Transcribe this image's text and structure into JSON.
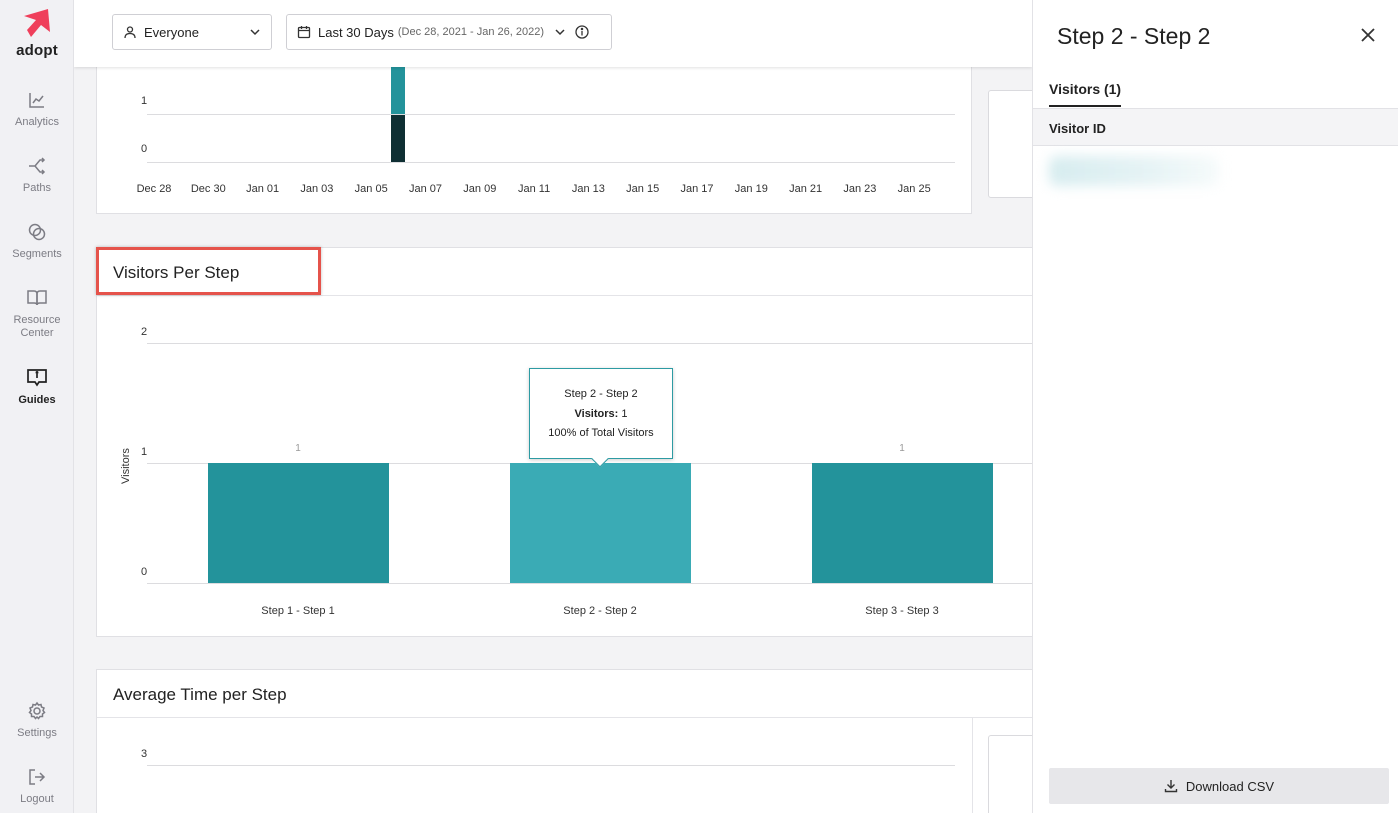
{
  "sidebar": {
    "logo_text": "adopt",
    "items": [
      {
        "label": "Analytics",
        "icon": "chart-line-icon"
      },
      {
        "label": "Paths",
        "icon": "paths-icon"
      },
      {
        "label": "Segments",
        "icon": "segments-icon"
      },
      {
        "label": "Resource Center",
        "icon": "book-icon"
      },
      {
        "label": "Guides",
        "icon": "guides-icon",
        "active": true
      },
      {
        "label": "Settings",
        "icon": "gear-icon"
      },
      {
        "label": "Logout",
        "icon": "logout-icon"
      }
    ]
  },
  "topbar": {
    "audience": "Everyone",
    "date_range": "Last 30 Days",
    "date_range_detail": "(Dec 28, 2021 - Jan 26, 2022)"
  },
  "top_chart": {
    "y_ticks": [
      "1",
      "0"
    ],
    "x_ticks": [
      "Dec 28",
      "Dec 30",
      "Jan 01",
      "Jan 03",
      "Jan 05",
      "Jan 07",
      "Jan 09",
      "Jan 11",
      "Jan 13",
      "Jan 15",
      "Jan 17",
      "Jan 19",
      "Jan 21",
      "Jan 23",
      "Jan 25"
    ]
  },
  "visitors_card": {
    "title": "Visitors Per Step"
  },
  "chart_data": {
    "type": "bar",
    "title": "Visitors Per Step",
    "ylabel": "Visitors",
    "xlabel": "",
    "ylim": [
      0,
      2
    ],
    "y_ticks": [
      "2",
      "1",
      "0"
    ],
    "categories": [
      "Step 1 - Step 1",
      "Step 2 - Step 2",
      "Step 3 - Step 3"
    ],
    "values": [
      1,
      1,
      1
    ],
    "value_labels": [
      "1",
      "",
      "1"
    ],
    "highlighted_index": 1,
    "colors": {
      "bar": "#23939b",
      "bar_hover": "#3aabb5"
    }
  },
  "tooltip": {
    "title": "Step 2 - Step 2",
    "metric_label": "Visitors:",
    "metric_value": "1",
    "percent_text": "100% of Total Visitors"
  },
  "avg_card": {
    "title": "Average Time per Step",
    "y_ticks": [
      "3"
    ]
  },
  "panel": {
    "title": "Step 2 - Step 2",
    "tab": "Visitors (1)",
    "column_header": "Visitor ID",
    "download_label": "Download CSV"
  }
}
